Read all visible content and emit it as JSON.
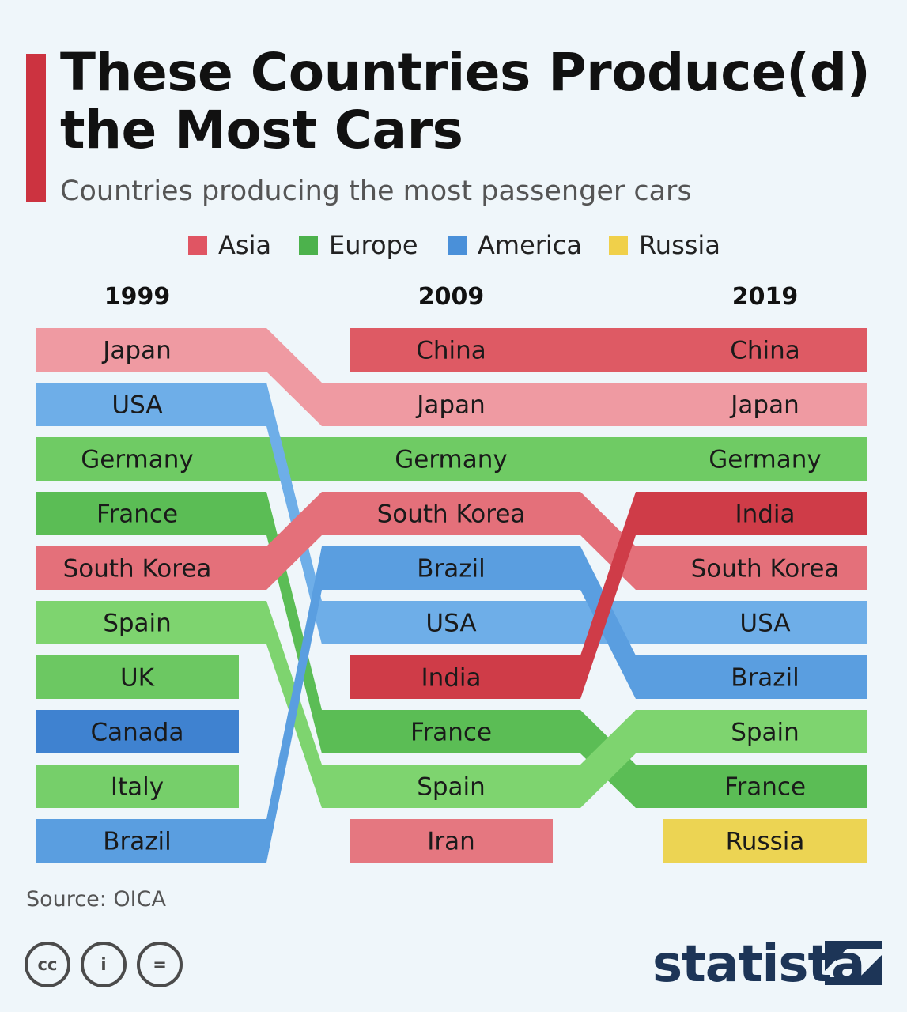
{
  "header": {
    "title_line1": "These Countries Produce(d)",
    "title_line2": "the Most Cars",
    "subtitle": "Countries producing the most passenger cars"
  },
  "colors": {
    "accent": "#cc3340",
    "asia": "#e05563",
    "europe": "#4cb24c",
    "america": "#4a90d9",
    "russia": "#f0d04a"
  },
  "legend": [
    {
      "label": "Asia",
      "color": "#e05563"
    },
    {
      "label": "Europe",
      "color": "#4cb24c"
    },
    {
      "label": "America",
      "color": "#4a90d9"
    },
    {
      "label": "Russia",
      "color": "#f0d04a"
    }
  ],
  "chart_data": {
    "type": "bump",
    "years": [
      "1999",
      "2009",
      "2019"
    ],
    "rankings": {
      "1999": [
        "Japan",
        "USA",
        "Germany",
        "France",
        "South Korea",
        "Spain",
        "UK",
        "Canada",
        "Italy",
        "Brazil"
      ],
      "2009": [
        "China",
        "Japan",
        "Germany",
        "South Korea",
        "Brazil",
        "USA",
        "India",
        "France",
        "Spain",
        "Iran"
      ],
      "2019": [
        "China",
        "Japan",
        "Germany",
        "India",
        "South Korea",
        "USA",
        "Brazil",
        "Spain",
        "France",
        "Russia"
      ]
    },
    "countries": [
      {
        "name": "Japan",
        "region": "Asia",
        "color": "#ef9aa2",
        "ranks": [
          1,
          2,
          2
        ]
      },
      {
        "name": "China",
        "region": "Asia",
        "color": "#de5a64",
        "ranks": [
          null,
          1,
          1
        ]
      },
      {
        "name": "USA",
        "region": "America",
        "color": "#6eaee8",
        "ranks": [
          2,
          6,
          6
        ]
      },
      {
        "name": "Germany",
        "region": "Europe",
        "color": "#6fcb64",
        "ranks": [
          3,
          3,
          3
        ]
      },
      {
        "name": "France",
        "region": "Europe",
        "color": "#5bbd55",
        "ranks": [
          4,
          8,
          9
        ]
      },
      {
        "name": "South Korea",
        "region": "Asia",
        "color": "#e4707a",
        "ranks": [
          5,
          4,
          5
        ]
      },
      {
        "name": "Spain",
        "region": "Europe",
        "color": "#7ed46f",
        "ranks": [
          6,
          9,
          8
        ]
      },
      {
        "name": "UK",
        "region": "Europe",
        "color": "#6cc862",
        "ranks": [
          7,
          null,
          null
        ]
      },
      {
        "name": "Canada",
        "region": "America",
        "color": "#3f82d0",
        "ranks": [
          8,
          null,
          null
        ]
      },
      {
        "name": "Italy",
        "region": "Europe",
        "color": "#76cf6a",
        "ranks": [
          9,
          null,
          null
        ]
      },
      {
        "name": "Brazil",
        "region": "America",
        "color": "#5a9ee0",
        "ranks": [
          10,
          5,
          7
        ]
      },
      {
        "name": "India",
        "region": "Asia",
        "color": "#cf3c48",
        "ranks": [
          null,
          7,
          4
        ]
      },
      {
        "name": "Iran",
        "region": "Asia",
        "color": "#e57780",
        "ranks": [
          null,
          10,
          null
        ]
      },
      {
        "name": "Russia",
        "region": "Russia",
        "color": "#ecd453",
        "ranks": [
          null,
          null,
          10
        ]
      }
    ]
  },
  "footer": {
    "source": "Source: OICA",
    "cc_icons": [
      {
        "name": "cc-icon",
        "text": "cc"
      },
      {
        "name": "by-icon",
        "text": "i"
      },
      {
        "name": "nd-icon",
        "text": "="
      }
    ],
    "brand": "statista"
  }
}
